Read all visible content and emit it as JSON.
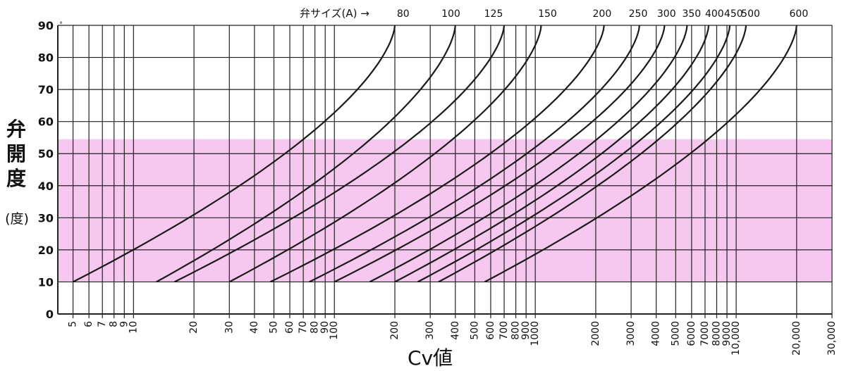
{
  "chart_data": {
    "type": "line",
    "title": "",
    "xlabel": "Cv値",
    "ylabel_chars": [
      "弁",
      "開",
      "度"
    ],
    "ylabel_unit": "(度)",
    "x_scale": "log",
    "xlim": [
      4.2,
      30000
    ],
    "ylim": [
      0,
      90
    ],
    "degree_mark": "°",
    "x_ticks": [
      5,
      6,
      7,
      8,
      9,
      10,
      20,
      30,
      40,
      50,
      60,
      70,
      80,
      90,
      100,
      200,
      300,
      400,
      500,
      600,
      700,
      800,
      900,
      1000,
      2000,
      3000,
      4000,
      5000,
      6000,
      7000,
      8000,
      9000,
      10000,
      20000,
      30000
    ],
    "x_tick_labels": [
      "5",
      "6",
      "7",
      "8",
      "9",
      "10",
      "20",
      "30",
      "40",
      "50",
      "60",
      "70",
      "80",
      "90",
      "100",
      "200",
      "300",
      "400",
      "500",
      "600",
      "700",
      "800",
      "900",
      "1000",
      "2000",
      "3000",
      "4000",
      "5000",
      "6000",
      "7000",
      "8000",
      "9000",
      "10,000",
      "20,000",
      "30,000"
    ],
    "y_ticks": [
      0,
      10,
      20,
      30,
      40,
      50,
      60,
      70,
      80,
      90
    ],
    "y_tick_labels": [
      "0",
      "10",
      "20",
      "30",
      "40",
      "50",
      "60",
      "70",
      "80",
      "90"
    ],
    "grid": true,
    "highlight_band": {
      "y_from": 10,
      "y_to": 54.5,
      "color": "#f6c8ef"
    },
    "size_header": "弁サイズ(A) →",
    "series": [
      {
        "name": "80",
        "cv_at_10deg": 5,
        "cv_at_90deg": 200
      },
      {
        "name": "100",
        "cv_at_10deg": 13,
        "cv_at_90deg": 400
      },
      {
        "name": "125",
        "cv_at_10deg": 16,
        "cv_at_90deg": 700
      },
      {
        "name": "150",
        "cv_at_10deg": 30,
        "cv_at_90deg": 1070
      },
      {
        "name": "200",
        "cv_at_10deg": 48,
        "cv_at_90deg": 2200
      },
      {
        "name": "250",
        "cv_at_10deg": 75,
        "cv_at_90deg": 3300
      },
      {
        "name": "300",
        "cv_at_10deg": 100,
        "cv_at_90deg": 4400
      },
      {
        "name": "350",
        "cv_at_10deg": 150,
        "cv_at_90deg": 5700
      },
      {
        "name": "400",
        "cv_at_10deg": 200,
        "cv_at_90deg": 7300
      },
      {
        "name": "450",
        "cv_at_10deg": 260,
        "cv_at_90deg": 9300
      },
      {
        "name": "500",
        "cv_at_10deg": 330,
        "cv_at_90deg": 11200
      },
      {
        "name": "600",
        "cv_at_10deg": 560,
        "cv_at_90deg": 20000
      }
    ],
    "curve_label_cv": [
      220,
      380,
      620,
      1150,
      2150,
      3250,
      4500,
      6000,
      7800,
      9700,
      11800,
      20500
    ]
  }
}
